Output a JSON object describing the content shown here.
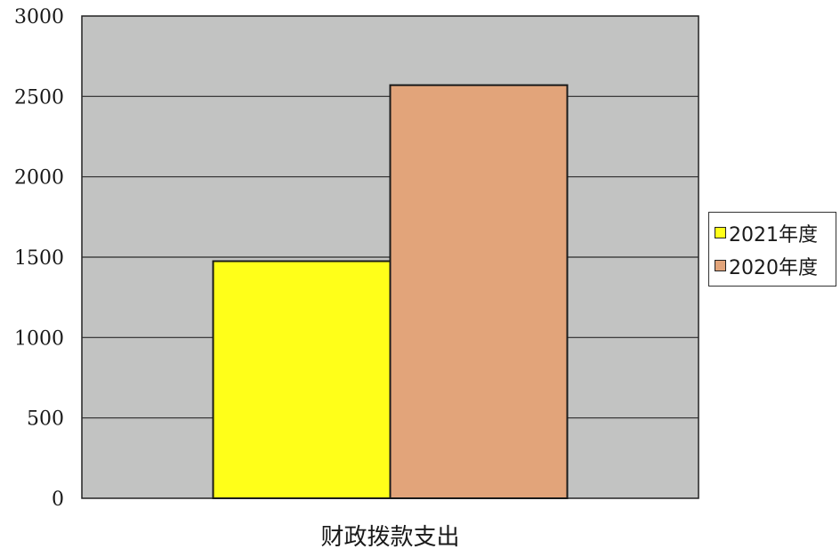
{
  "chart_data": {
    "type": "bar",
    "categories": [
      "财政拨款支出"
    ],
    "series": [
      {
        "name": "2021年度",
        "values": [
          1475
        ],
        "color": "#ffff19"
      },
      {
        "name": "2020年度",
        "values": [
          2570
        ],
        "color": "#e2a47a"
      }
    ],
    "ylim": [
      0,
      3000
    ],
    "yticks": [
      0,
      500,
      1000,
      1500,
      2000,
      2500,
      3000
    ],
    "grid": true,
    "legend_position": "right",
    "plot_background": "#c2c3c2"
  }
}
